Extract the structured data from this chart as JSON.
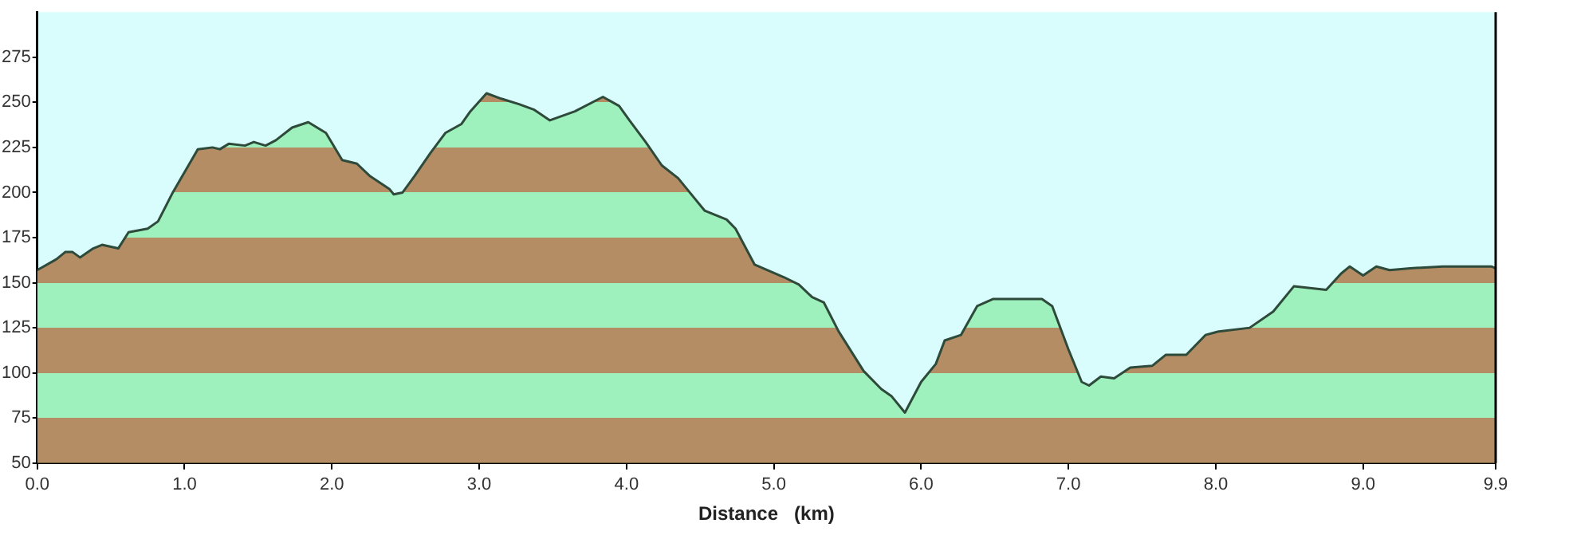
{
  "chart_data": {
    "type": "area",
    "xlabel": "Distance   (km)",
    "x": [
      0,
      0.13,
      0.19,
      0.24,
      0.29,
      0.38,
      0.44,
      0.55,
      0.62,
      0.75,
      0.82,
      0.92,
      0.97,
      1.09,
      1.19,
      1.24,
      1.3,
      1.41,
      1.47,
      1.55,
      1.62,
      1.73,
      1.84,
      1.96,
      2.07,
      2.17,
      2.26,
      2.39,
      2.42,
      2.48,
      2.56,
      2.67,
      2.77,
      2.88,
      2.94,
      3.05,
      3.15,
      3.27,
      3.37,
      3.48,
      3.65,
      3.84,
      3.95,
      4.02,
      4.13,
      4.24,
      4.35,
      4.53,
      4.68,
      4.74,
      4.87,
      5.07,
      5.17,
      5.26,
      5.34,
      5.44,
      5.61,
      5.73,
      5.8,
      5.89,
      6.0,
      6.1,
      6.16,
      6.27,
      6.38,
      6.49,
      6.64,
      6.82,
      6.89,
      7.0,
      7.09,
      7.14,
      7.22,
      7.31,
      7.42,
      7.57,
      7.66,
      7.8,
      7.93,
      8.02,
      8.23,
      8.39,
      8.53,
      8.75,
      8.85,
      8.91,
      9.0,
      9.09,
      9.18,
      9.32,
      9.54,
      9.87,
      9.9
    ],
    "series": [
      {
        "color": "#9ef0bc",
        "values": [
          157,
          163,
          167,
          167,
          164,
          169,
          171,
          169,
          178,
          180,
          184,
          200,
          207,
          224,
          225,
          224,
          227,
          226,
          228,
          226,
          229,
          236,
          239,
          233,
          218,
          216,
          209,
          202,
          199,
          200,
          209,
          222,
          233,
          238,
          245,
          255,
          252,
          249,
          246,
          240,
          245,
          253,
          248,
          240,
          228,
          215,
          208,
          190,
          185,
          180,
          160,
          153,
          149,
          142,
          139,
          123,
          101,
          91,
          87,
          78,
          95,
          105,
          118,
          121,
          137,
          141,
          141,
          141,
          137,
          113,
          95,
          93,
          98,
          97,
          103,
          104,
          110,
          110,
          121,
          123,
          125,
          134,
          148,
          146,
          155,
          159,
          154,
          159,
          157,
          158,
          159,
          159,
          158
        ]
      }
    ],
    "xlim": [
      0,
      9.9
    ],
    "ylim": [
      50,
      300
    ],
    "xticks": [
      {
        "value": 0,
        "label": "0.0"
      },
      {
        "value": 1,
        "label": "1.0"
      },
      {
        "value": 2,
        "label": "2.0"
      },
      {
        "value": 3,
        "label": "3.0"
      },
      {
        "value": 4,
        "label": "4.0"
      },
      {
        "value": 5,
        "label": "5.0"
      },
      {
        "value": 6,
        "label": "6.0"
      },
      {
        "value": 7,
        "label": "7.0"
      },
      {
        "value": 8,
        "label": "8.0"
      },
      {
        "value": 9,
        "label": "9.0"
      },
      9.9
    ],
    "yticks": [
      50,
      75,
      100,
      125,
      150,
      175,
      200,
      225,
      250,
      275
    ],
    "grid": false,
    "legend": false
  }
}
